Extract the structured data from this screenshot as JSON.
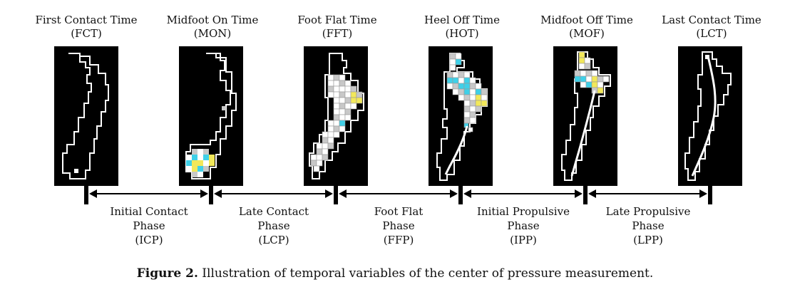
{
  "events": [
    {
      "line1": "First Contact Time",
      "line2": "(FCT)"
    },
    {
      "line1": "Midfoot On Time",
      "line2": "(MON)"
    },
    {
      "line1": "Foot Flat Time",
      "line2": "(FFT)"
    },
    {
      "line1": "Heel Off Time",
      "line2": "(HOT)"
    },
    {
      "line1": "Midfoot Off Time",
      "line2": "(MOF)"
    },
    {
      "line1": "Last Contact Time",
      "line2": "(LCT)"
    }
  ],
  "phases": [
    {
      "line1": "Initial Contact",
      "line2": "Phase",
      "line3": "(ICP)"
    },
    {
      "line1": "Late Contact",
      "line2": "Phase",
      "line3": "(LCP)"
    },
    {
      "line1": "Foot Flat",
      "line2": "Phase",
      "line3": "(FFP)"
    },
    {
      "line1": "Initial Propulsive",
      "line2": "Phase",
      "line3": "(IPP)"
    },
    {
      "line1": "Late Propulsive",
      "line2": "Phase",
      "line3": "(LPP)"
    }
  ],
  "caption": {
    "label": "Figure 2.",
    "text": " Illustration of temporal variables of the center of pressure measurement."
  },
  "colors": {
    "panel_bg": "#000000",
    "outline": "#ffffff",
    "cell_white": "#ffffff",
    "cell_gray": "#c8c8c8",
    "cell_cyan": "#3fd0e8",
    "cell_yellow": "#f2e85a"
  }
}
